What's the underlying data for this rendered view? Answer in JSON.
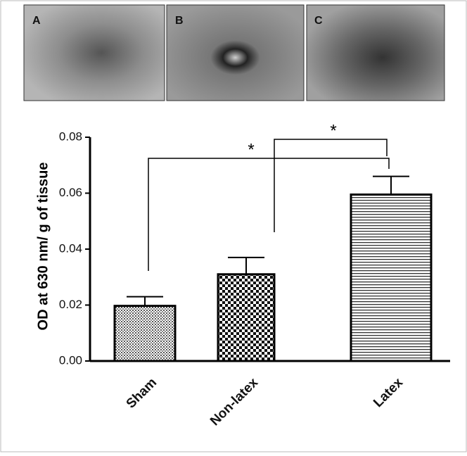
{
  "panels": [
    "A",
    "B",
    "C"
  ],
  "chart_data": {
    "type": "bar",
    "y_label": "OD at 630 nm/ g of tissue",
    "categories": [
      "Sham",
      "Non-latex",
      "Latex"
    ],
    "values": [
      0.0197,
      0.031,
      0.0595
    ],
    "errors": [
      0.0033,
      0.006,
      0.0065
    ],
    "ylim": [
      0,
      0.08
    ],
    "yticks": [
      {
        "value": 0,
        "label": "0.00"
      },
      {
        "value": 0.02,
        "label": "0.02"
      },
      {
        "value": 0.04,
        "label": "0.04"
      },
      {
        "value": 0.06,
        "label": "0.06"
      },
      {
        "value": 0.08,
        "label": "0.08"
      }
    ],
    "annotations": [
      "*",
      "*"
    ]
  }
}
